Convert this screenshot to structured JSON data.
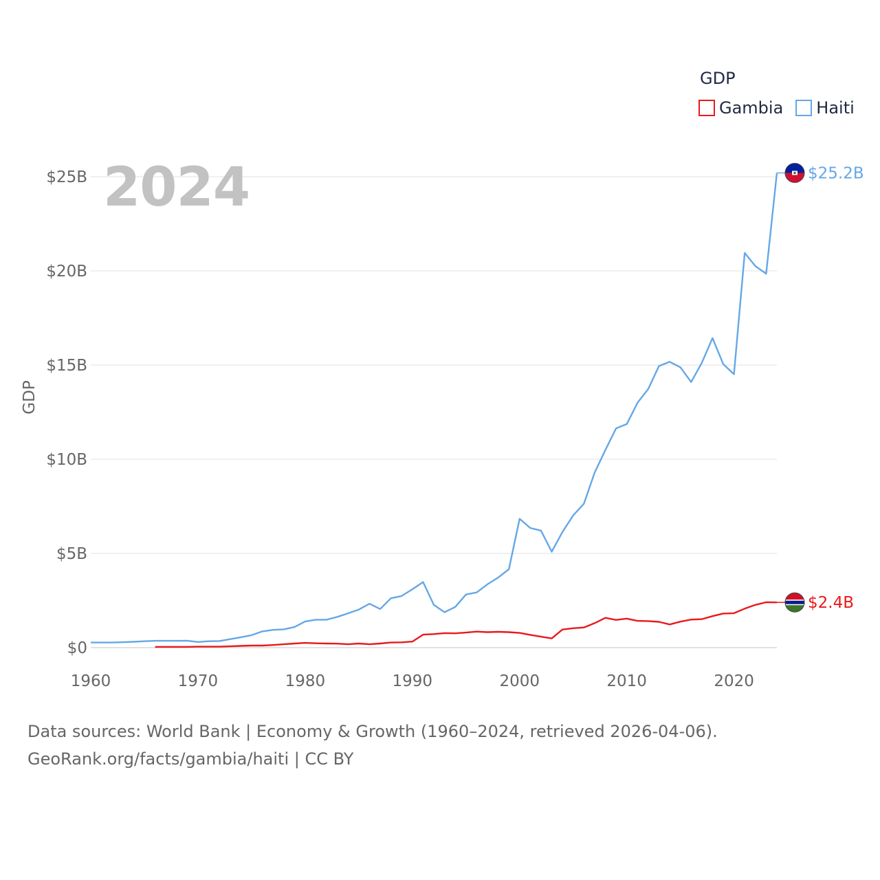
{
  "legend": {
    "title": "GDP",
    "items": [
      {
        "label": "Gambia",
        "color": "#e8191c"
      },
      {
        "label": "Haiti",
        "color": "#64a7e6"
      }
    ]
  },
  "year_label": "2024",
  "source": {
    "line1": "Data sources: World Bank | Economy & Growth (1960–2024, retrieved 2026-04-06).",
    "line2": "GeoRank.org/facts/gambia/haiti | CC BY"
  },
  "chart_data": {
    "type": "line",
    "title": "",
    "xlabel": "",
    "ylabel": "GDP",
    "xlim": [
      1960,
      2024
    ],
    "ylim": [
      0,
      25
    ],
    "y_unit": "billion USD",
    "x_ticks": [
      1960,
      1970,
      1980,
      1990,
      2000,
      2010,
      2020
    ],
    "y_ticks": [
      {
        "value": 0,
        "label": "$0"
      },
      {
        "value": 5,
        "label": "$5B"
      },
      {
        "value": 10,
        "label": "$10B"
      },
      {
        "value": 15,
        "label": "$15B"
      },
      {
        "value": 20,
        "label": "$20B"
      },
      {
        "value": 25,
        "label": "$25B"
      }
    ],
    "grid": true,
    "series": [
      {
        "name": "Haiti",
        "color": "#64a7e6",
        "end_label": "$25.2B",
        "flag": "haiti-flag",
        "x": [
          1960,
          1961,
          1962,
          1963,
          1964,
          1965,
          1966,
          1967,
          1968,
          1969,
          1970,
          1971,
          1972,
          1973,
          1974,
          1975,
          1976,
          1977,
          1978,
          1979,
          1980,
          1981,
          1982,
          1983,
          1984,
          1985,
          1986,
          1987,
          1988,
          1989,
          1990,
          1991,
          1992,
          1993,
          1994,
          1995,
          1996,
          1997,
          1998,
          1999,
          2000,
          2001,
          2002,
          2003,
          2004,
          2005,
          2006,
          2007,
          2008,
          2009,
          2010,
          2011,
          2012,
          2013,
          2014,
          2015,
          2016,
          2017,
          2018,
          2019,
          2020,
          2021,
          2022,
          2023,
          2024
        ],
        "values": [
          0.27,
          0.27,
          0.27,
          0.29,
          0.31,
          0.34,
          0.36,
          0.36,
          0.36,
          0.37,
          0.3,
          0.34,
          0.35,
          0.45,
          0.55,
          0.66,
          0.86,
          0.94,
          0.97,
          1.09,
          1.39,
          1.48,
          1.48,
          1.63,
          1.82,
          2.02,
          2.33,
          2.05,
          2.62,
          2.74,
          3.1,
          3.48,
          2.27,
          1.88,
          2.16,
          2.82,
          2.93,
          3.36,
          3.72,
          4.16,
          6.84,
          6.35,
          6.21,
          5.09,
          6.14,
          7.02,
          7.64,
          9.29,
          10.49,
          11.64,
          11.87,
          13.0,
          13.73,
          14.95,
          15.17,
          14.88,
          14.1,
          15.12,
          16.43,
          15.05,
          14.51,
          20.95,
          20.25,
          19.85,
          25.2
        ]
      },
      {
        "name": "Gambia",
        "color": "#e8191c",
        "end_label": "$2.4B",
        "flag": "gambia-flag",
        "x": [
          1966,
          1967,
          1968,
          1969,
          1970,
          1971,
          1972,
          1973,
          1974,
          1975,
          1976,
          1977,
          1978,
          1979,
          1980,
          1981,
          1982,
          1983,
          1984,
          1985,
          1986,
          1987,
          1988,
          1989,
          1990,
          1991,
          1992,
          1993,
          1994,
          1995,
          1996,
          1997,
          1998,
          1999,
          2000,
          2001,
          2002,
          2003,
          2004,
          2005,
          2006,
          2007,
          2008,
          2009,
          2010,
          2011,
          2012,
          2013,
          2014,
          2015,
          2016,
          2017,
          2018,
          2019,
          2020,
          2021,
          2022,
          2023,
          2024
        ],
        "values": [
          0.04,
          0.04,
          0.04,
          0.04,
          0.05,
          0.05,
          0.05,
          0.07,
          0.09,
          0.11,
          0.11,
          0.14,
          0.18,
          0.22,
          0.25,
          0.23,
          0.22,
          0.21,
          0.18,
          0.22,
          0.18,
          0.22,
          0.27,
          0.28,
          0.32,
          0.69,
          0.72,
          0.77,
          0.76,
          0.8,
          0.85,
          0.82,
          0.84,
          0.82,
          0.78,
          0.68,
          0.58,
          0.49,
          0.96,
          1.03,
          1.07,
          1.3,
          1.58,
          1.47,
          1.54,
          1.42,
          1.41,
          1.37,
          1.23,
          1.38,
          1.49,
          1.51,
          1.67,
          1.81,
          1.83,
          2.07,
          2.27,
          2.41,
          2.4
        ]
      }
    ]
  }
}
